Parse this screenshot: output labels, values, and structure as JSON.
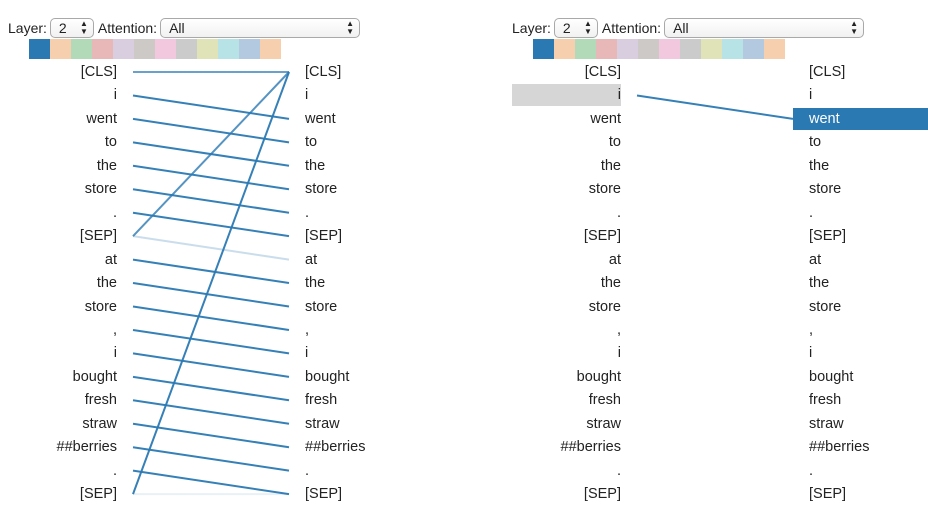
{
  "panels": [
    {
      "id": "left",
      "layer_label": "Layer:",
      "layer_value": "2",
      "attention_label": "Attention:",
      "attention_value": "All",
      "highlighted_left_index": null,
      "highlighted_right_index": null,
      "mode": "all"
    },
    {
      "id": "right",
      "layer_label": "Layer:",
      "layer_value": "2",
      "attention_label": "Attention:",
      "attention_value": "All",
      "highlighted_left_index": 1,
      "highlighted_right_index": 2,
      "mode": "single"
    }
  ],
  "head_colors": [
    "#2a79b3",
    "#f5cfae",
    "#b2d9b8",
    "#e8b8b8",
    "#d9cde0",
    "#cdc9c6",
    "#f2c8de",
    "#cbcbcb",
    "#e0e3b8",
    "#b8e3e6",
    "#b3c9e0",
    "#f5cfae"
  ],
  "tokens": [
    "[CLS]",
    "i",
    "went",
    "to",
    "the",
    "store",
    ".",
    "[SEP]",
    "at",
    "the",
    "store",
    ",",
    "i",
    "bought",
    "fresh",
    "straw",
    "##berries",
    ".",
    "[SEP]"
  ],
  "attention_left_panel": [
    {
      "from": 0,
      "to": 0,
      "weight": 0.7
    },
    {
      "from": 1,
      "to": 2,
      "weight": 0.95
    },
    {
      "from": 2,
      "to": 3,
      "weight": 0.95
    },
    {
      "from": 3,
      "to": 4,
      "weight": 0.95
    },
    {
      "from": 4,
      "to": 5,
      "weight": 0.95
    },
    {
      "from": 5,
      "to": 6,
      "weight": 0.95
    },
    {
      "from": 6,
      "to": 7,
      "weight": 0.95
    },
    {
      "from": 7,
      "to": 8,
      "weight": 0.25
    },
    {
      "from": 7,
      "to": 0,
      "weight": 0.8
    },
    {
      "from": 8,
      "to": 9,
      "weight": 0.95
    },
    {
      "from": 9,
      "to": 10,
      "weight": 0.95
    },
    {
      "from": 10,
      "to": 11,
      "weight": 0.95
    },
    {
      "from": 11,
      "to": 12,
      "weight": 0.95
    },
    {
      "from": 12,
      "to": 13,
      "weight": 0.95
    },
    {
      "from": 13,
      "to": 14,
      "weight": 0.95
    },
    {
      "from": 14,
      "to": 15,
      "weight": 0.95
    },
    {
      "from": 15,
      "to": 16,
      "weight": 0.95
    },
    {
      "from": 16,
      "to": 17,
      "weight": 0.95
    },
    {
      "from": 17,
      "to": 18,
      "weight": 0.95
    },
    {
      "from": 18,
      "to": 0,
      "weight": 0.95
    },
    {
      "from": 18,
      "to": 18,
      "weight": 0.1
    }
  ],
  "attention_right_panel": [
    {
      "from": 1,
      "to": 2,
      "weight": 0.95
    }
  ]
}
